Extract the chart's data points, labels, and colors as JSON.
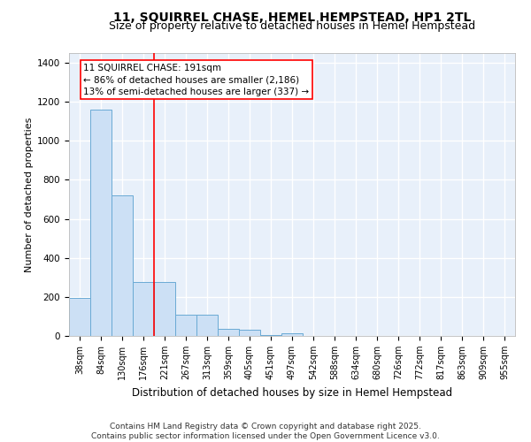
{
  "title": "11, SQUIRREL CHASE, HEMEL HEMPSTEAD, HP1 2TL",
  "subtitle": "Size of property relative to detached houses in Hemel Hempstead",
  "xlabel": "Distribution of detached houses by size in Hemel Hempstead",
  "ylabel": "Number of detached properties",
  "categories": [
    "38sqm",
    "84sqm",
    "130sqm",
    "176sqm",
    "221sqm",
    "267sqm",
    "313sqm",
    "359sqm",
    "405sqm",
    "451sqm",
    "497sqm",
    "542sqm",
    "588sqm",
    "634sqm",
    "680sqm",
    "726sqm",
    "772sqm",
    "817sqm",
    "863sqm",
    "909sqm",
    "955sqm"
  ],
  "values": [
    195,
    1160,
    720,
    275,
    275,
    110,
    110,
    35,
    30,
    5,
    15,
    0,
    0,
    0,
    0,
    0,
    0,
    0,
    0,
    0,
    0
  ],
  "bar_color": "#cce0f5",
  "bar_edge_color": "#6aaad4",
  "background_color": "#e8f0fa",
  "grid_color": "#ffffff",
  "annotation_text": "11 SQUIRREL CHASE: 191sqm\n← 86% of detached houses are smaller (2,186)\n13% of semi-detached houses are larger (337) →",
  "red_line_x": 3.5,
  "ylim": [
    0,
    1450
  ],
  "yticks": [
    0,
    200,
    400,
    600,
    800,
    1000,
    1200,
    1400
  ],
  "footer_line1": "Contains HM Land Registry data © Crown copyright and database right 2025.",
  "footer_line2": "Contains public sector information licensed under the Open Government Licence v3.0.",
  "title_fontsize": 10,
  "subtitle_fontsize": 9,
  "tick_fontsize": 7,
  "ylabel_fontsize": 8,
  "xlabel_fontsize": 8.5,
  "footer_fontsize": 6.5,
  "ann_fontsize": 7.5
}
